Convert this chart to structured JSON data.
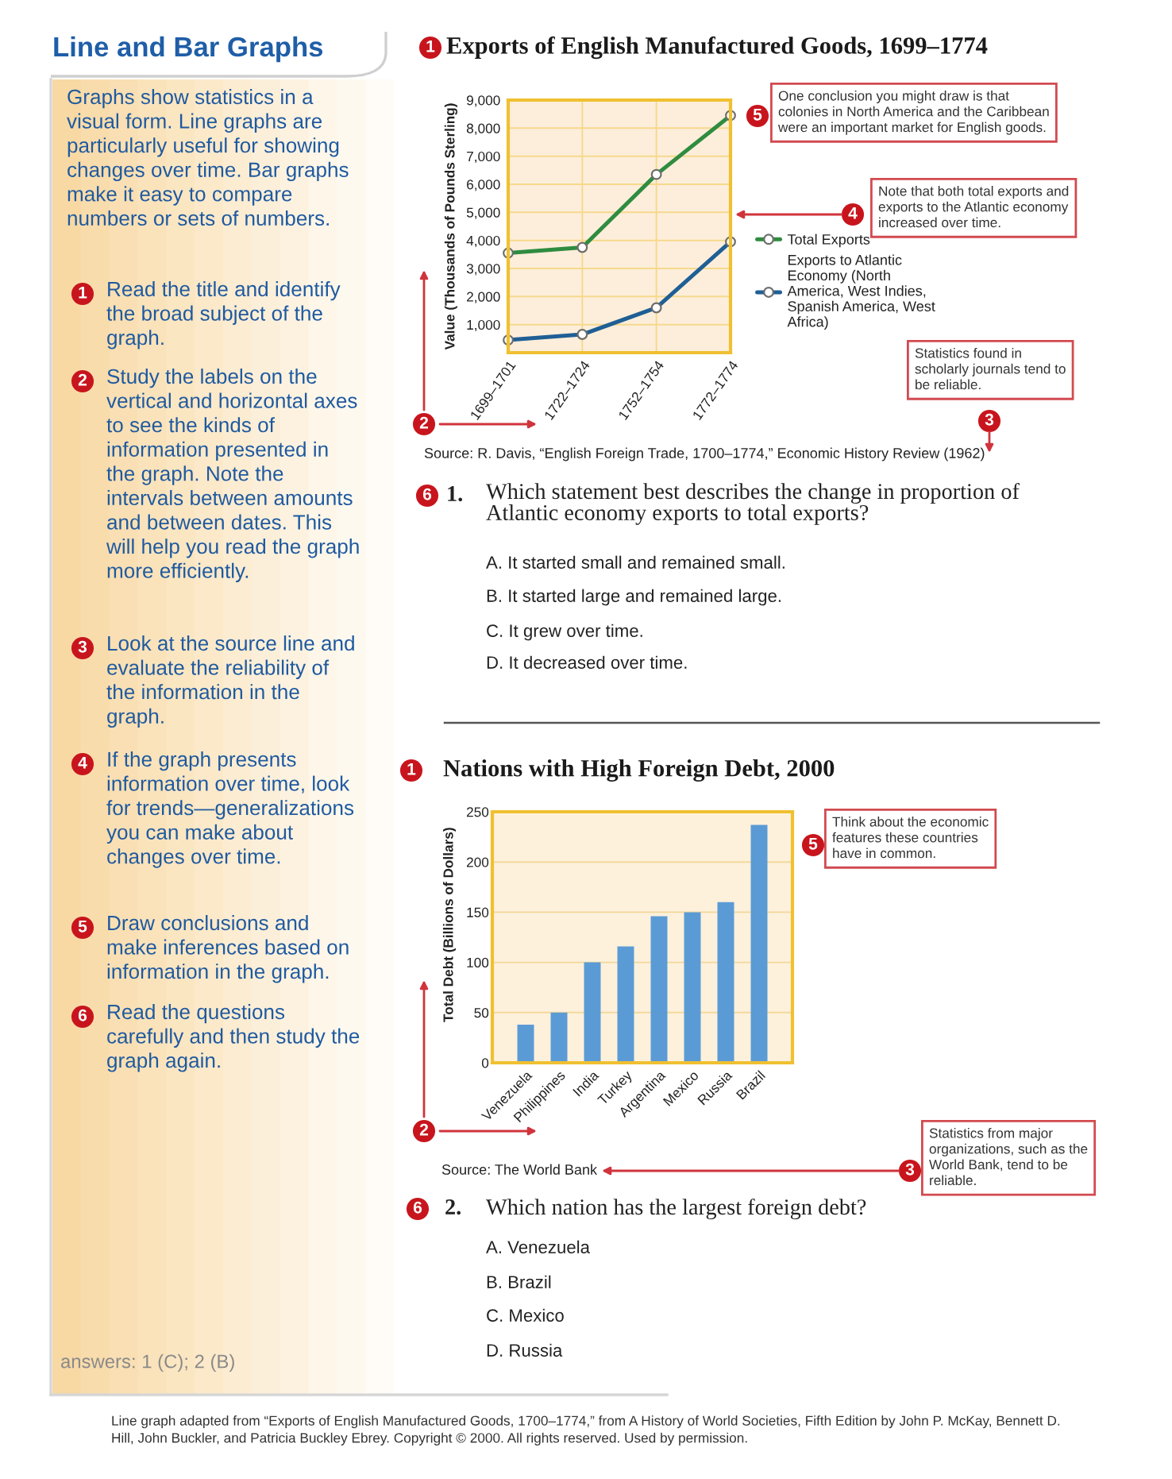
{
  "chart_data": [
    {
      "type": "line",
      "title": "Exports of English Manufactured Goods, 1699–1774",
      "ylabel": "Value (Thousands of Pounds Sterling)",
      "categories": [
        "1699–1701",
        "1722–1724",
        "1752–1754",
        "1772–1774"
      ],
      "series": [
        {
          "name": "Total Exports",
          "color": "#2f8c40",
          "values": [
            3550,
            3750,
            6350,
            8450
          ]
        },
        {
          "name": "Exports to Atlantic Economy (North America, West Indies, Spanish America, West Africa)",
          "color": "#1f5f95",
          "values": [
            450,
            650,
            1600,
            3950
          ]
        }
      ],
      "ylim": [
        0,
        9000
      ],
      "yticks": [
        {
          "value": 1000,
          "label": "1,000"
        },
        {
          "value": 2000,
          "label": "2,000"
        },
        {
          "value": 3000,
          "label": "3,000"
        },
        {
          "value": 4000,
          "label": "4,000"
        },
        {
          "value": 5000,
          "label": "5,000"
        },
        {
          "value": 6000,
          "label": "6,000"
        },
        {
          "value": 7000,
          "label": "7,000"
        },
        {
          "value": 8000,
          "label": "8,000"
        },
        {
          "value": 9000,
          "label": "9,000"
        }
      ],
      "grid": true,
      "legend": "right",
      "marker": "circle",
      "annotations": [
        "Line and Bar Graphs",
        "Graphs show statistics in a visual form. Line graphs are particularly useful for showing changes over time. Bar graphs make it easy to compare numbers or sets of numbers.",
        "1",
        "Read the title and identify the broad subject of the graph.",
        "2",
        "Study the labels on the vertical and horizontal axes to see the kinds of information presented in the graph. Note the intervals between amounts and between dates. This will help you read the graph more efficiently.",
        "3",
        "Look at the source line and evaluate the reliability of the information in the graph.",
        "4",
        "If the graph presents information over time, look for trends—generalizations you can make about changes over time.",
        "5",
        "Draw conclusions and make inferences based on information in the graph.",
        "6",
        "Read the questions carefully and then study the graph again.",
        "answers: 1 (C); 2 (B)",
        "1",
        "5",
        "One conclusion you might draw is that colonies in North America and the Caribbean were an important market for English goods.",
        "4",
        "Note that both total exports and exports to the Atlantic economy increased over time.",
        "Statistics found in scholarly journals tend to be reliable.",
        "3",
        "2",
        "Source: R. Davis, “English Foreign Trade, 1700–1774,” Economic History Review (1962)",
        "6",
        "1.",
        "Which statement best describes the change in proportion of Atlantic economy exports to total exports?",
        "A. It started small and remained small.",
        "B. It started large and remained large.",
        "C. It grew over time.",
        "D. It decreased over time."
      ]
    },
    {
      "type": "bar",
      "title": "Nations with High Foreign Debt, 2000",
      "ylabel": "Total Debt (Billions of Dollars)",
      "categories": [
        "Venezuela",
        "Philippines",
        "India",
        "Turkey",
        "Argentina",
        "Mexico",
        "Russia",
        "Brazil"
      ],
      "values": [
        38,
        50,
        100,
        116,
        146,
        150,
        160,
        237
      ],
      "color": "#5b9bd5",
      "ylim": [
        0,
        250
      ],
      "yticks": [
        0,
        50,
        100,
        150,
        200,
        250
      ],
      "grid": "y",
      "annotations": [
        "1",
        "5",
        "Think about the economic features these countries have in common.",
        "2",
        "Source: The World Bank",
        "3",
        "Statistics from major organizations, such as the World Bank, tend to be reliable.",
        "6",
        "2.",
        "Which nation has the largest foreign debt?",
        "A. Venezuela",
        "B. Brazil",
        "C. Mexico",
        "D. Russia",
        "Line graph adapted from “Exports of English Manufactured Goods, 1700–1774,” from A History of World Societies, Fifth Edition by John P. McKay, Bennett D. Hill, John Buckler, and Patricia Buckley Ebrey. Copyright © 2000. All rights reserved. Used by permission."
      ]
    }
  ]
}
